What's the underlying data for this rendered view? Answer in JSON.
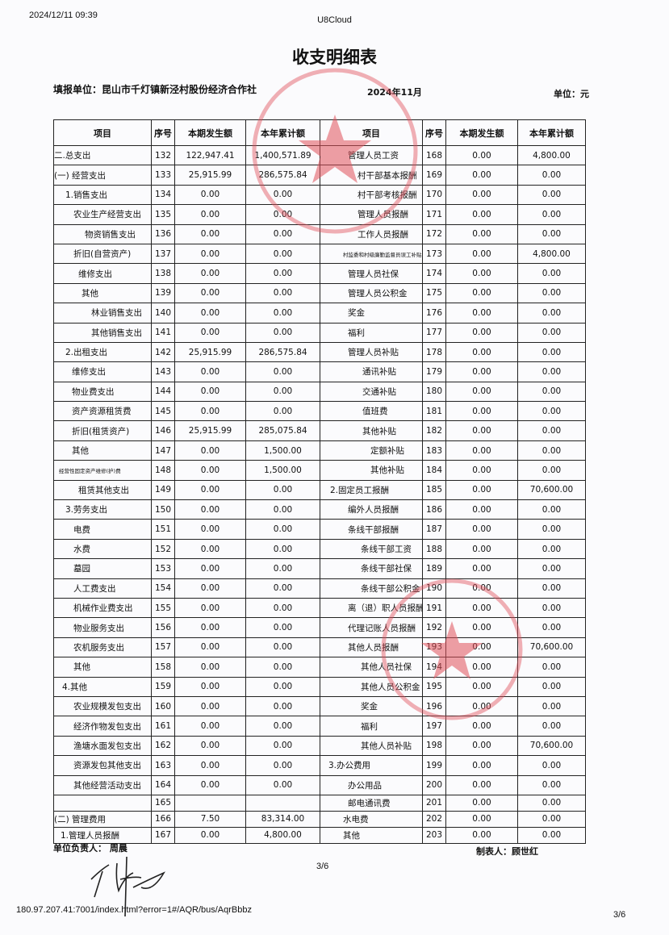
{
  "header": {
    "timestamp": "2024/12/11 09:39",
    "app": "U8Cloud"
  },
  "title": "收支明细表",
  "unit_name": "填报单位：昆山市千灯镇新泾村股份经济合作社",
  "period": "2024年11月",
  "currency_unit": "单位：元",
  "columns": [
    "项目",
    "序号",
    "本期发生额",
    "本年累计额",
    "项目",
    "序号",
    "本期发生额",
    "本年累计额"
  ],
  "rows": [
    {
      "l": [
        "二.总支出",
        "132",
        "122,947.41",
        "1,400,571.89"
      ],
      "r": [
        "管理人员工资",
        "168",
        "0.00",
        "4,800.00"
      ]
    },
    {
      "l": [
        "(一) 经营支出",
        "133",
        "25,915.99",
        "286,575.84"
      ],
      "r": [
        "村干部基本报酬",
        "169",
        "0.00",
        "0.00"
      ]
    },
    {
      "l": [
        "1.销售支出",
        "134",
        "0.00",
        "0.00"
      ],
      "r": [
        "村干部考核报酬",
        "170",
        "0.00",
        "0.00"
      ]
    },
    {
      "l": [
        "农业生产经营支出",
        "135",
        "0.00",
        "0.00"
      ],
      "r": [
        "管理人员报酬",
        "171",
        "0.00",
        "0.00"
      ]
    },
    {
      "l": [
        "物资销售支出",
        "136",
        "0.00",
        "0.00"
      ],
      "r": [
        "工作人员报酬",
        "172",
        "0.00",
        "0.00"
      ]
    },
    {
      "l": [
        "折旧(自营资产)",
        "137",
        "0.00",
        "0.00"
      ],
      "r": [
        "村监委和村级廉勤监督员误工补贴",
        "173",
        "0.00",
        "4,800.00"
      ]
    },
    {
      "l": [
        "维修支出",
        "138",
        "0.00",
        "0.00"
      ],
      "r": [
        "管理人员社保",
        "174",
        "0.00",
        "0.00"
      ]
    },
    {
      "l": [
        "其他",
        "139",
        "0.00",
        "0.00"
      ],
      "r": [
        "管理人员公积金",
        "175",
        "0.00",
        "0.00"
      ]
    },
    {
      "l": [
        "林业销售支出",
        "140",
        "0.00",
        "0.00"
      ],
      "r": [
        "奖金",
        "176",
        "0.00",
        "0.00"
      ]
    },
    {
      "l": [
        "其他销售支出",
        "141",
        "0.00",
        "0.00"
      ],
      "r": [
        "福利",
        "177",
        "0.00",
        "0.00"
      ]
    },
    {
      "l": [
        "2.出租支出",
        "142",
        "25,915.99",
        "286,575.84"
      ],
      "r": [
        "管理人员补贴",
        "178",
        "0.00",
        "0.00"
      ]
    },
    {
      "l": [
        "维修支出",
        "143",
        "0.00",
        "0.00"
      ],
      "r": [
        "通讯补贴",
        "179",
        "0.00",
        "0.00"
      ]
    },
    {
      "l": [
        "物业费支出",
        "144",
        "0.00",
        "0.00"
      ],
      "r": [
        "交通补贴",
        "180",
        "0.00",
        "0.00"
      ]
    },
    {
      "l": [
        "资产资源租赁费",
        "145",
        "0.00",
        "0.00"
      ],
      "r": [
        "值班费",
        "181",
        "0.00",
        "0.00"
      ]
    },
    {
      "l": [
        "折旧(租赁资产)",
        "146",
        "25,915.99",
        "285,075.84"
      ],
      "r": [
        "其他补贴",
        "182",
        "0.00",
        "0.00"
      ]
    },
    {
      "l": [
        "其他",
        "147",
        "0.00",
        "1,500.00"
      ],
      "r": [
        "定额补贴",
        "183",
        "0.00",
        "0.00"
      ]
    },
    {
      "l": [
        "经营性固定资产维修(护)费",
        "148",
        "0.00",
        "1,500.00"
      ],
      "r": [
        "其他补贴",
        "184",
        "0.00",
        "0.00"
      ]
    },
    {
      "l": [
        "租赁其他支出",
        "149",
        "0.00",
        "0.00"
      ],
      "r": [
        "2.固定员工报酬",
        "185",
        "0.00",
        "70,600.00"
      ]
    },
    {
      "l": [
        "3.劳务支出",
        "150",
        "0.00",
        "0.00"
      ],
      "r": [
        "编外人员报酬",
        "186",
        "0.00",
        "0.00"
      ]
    },
    {
      "l": [
        "电费",
        "151",
        "0.00",
        "0.00"
      ],
      "r": [
        "条线干部报酬",
        "187",
        "0.00",
        "0.00"
      ]
    },
    {
      "l": [
        "水费",
        "152",
        "0.00",
        "0.00"
      ],
      "r": [
        "条线干部工资",
        "188",
        "0.00",
        "0.00"
      ]
    },
    {
      "l": [
        "墓园",
        "153",
        "0.00",
        "0.00"
      ],
      "r": [
        "条线干部社保",
        "189",
        "0.00",
        "0.00"
      ]
    },
    {
      "l": [
        "人工费支出",
        "154",
        "0.00",
        "0.00"
      ],
      "r": [
        "条线干部公积金",
        "190",
        "0.00",
        "0.00"
      ]
    },
    {
      "l": [
        "机械作业费支出",
        "155",
        "0.00",
        "0.00"
      ],
      "r": [
        "离（退）职人员报酬",
        "191",
        "0.00",
        "0.00"
      ]
    },
    {
      "l": [
        "物业服务支出",
        "156",
        "0.00",
        "0.00"
      ],
      "r": [
        "代理记账人员报酬",
        "192",
        "0.00",
        "0.00"
      ]
    },
    {
      "l": [
        "农机服务支出",
        "157",
        "0.00",
        "0.00"
      ],
      "r": [
        "其他人员报酬",
        "193",
        "0.00",
        "70,600.00"
      ]
    },
    {
      "l": [
        "其他",
        "158",
        "0.00",
        "0.00"
      ],
      "r": [
        "其他人员社保",
        "194",
        "0.00",
        "0.00"
      ]
    },
    {
      "l": [
        "4.其他",
        "159",
        "0.00",
        "0.00"
      ],
      "r": [
        "其他人员公积金",
        "195",
        "0.00",
        "0.00"
      ]
    },
    {
      "l": [
        "农业规模发包支出",
        "160",
        "0.00",
        "0.00"
      ],
      "r": [
        "奖金",
        "196",
        "0.00",
        "0.00"
      ]
    },
    {
      "l": [
        "经济作物发包支出",
        "161",
        "0.00",
        "0.00"
      ],
      "r": [
        "福利",
        "197",
        "0.00",
        "0.00"
      ]
    },
    {
      "l": [
        "渔塘水面发包支出",
        "162",
        "0.00",
        "0.00"
      ],
      "r": [
        "其他人员补贴",
        "198",
        "0.00",
        "70,600.00"
      ]
    },
    {
      "l": [
        "资源发包其他支出",
        "163",
        "0.00",
        "0.00"
      ],
      "r": [
        "3.办公费用",
        "199",
        "0.00",
        "0.00"
      ]
    },
    {
      "l": [
        "其他经营活动支出",
        "164",
        "0.00",
        "0.00"
      ],
      "r": [
        "办公用品",
        "200",
        "0.00",
        "0.00"
      ]
    },
    {
      "l": [
        "",
        "165",
        "",
        ""
      ],
      "r": [
        "邮电通讯费",
        "201",
        "0.00",
        "0.00"
      ]
    },
    {
      "l": [
        "(二) 管理费用",
        "166",
        "7.50",
        "83,314.00"
      ],
      "r": [
        "水电费",
        "202",
        "0.00",
        "0.00"
      ]
    },
    {
      "l": [
        "1.管理人员报酬",
        "167",
        "0.00",
        "4,800.00"
      ],
      "r": [
        "其他",
        "203",
        "0.00",
        "0.00"
      ]
    }
  ],
  "footer": {
    "responsible": "单位负责人：  周晨",
    "preparer": "制表人：顾世红",
    "page_center": "3/6",
    "url": "180.97.207.41:7001/index.html?error=1#/AQR/bus/AqrBbbz",
    "page_right": "3/6"
  },
  "seal_text": "昆山市千灯镇新泾村股份经济合作社",
  "seal_color": "#e0505a"
}
